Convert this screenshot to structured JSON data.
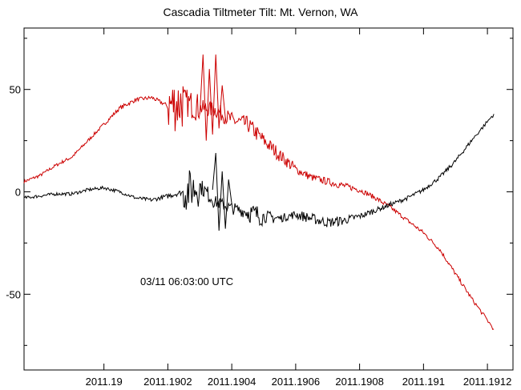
{
  "chart_data": {
    "type": "line",
    "title": "Cascadia Tiltmeter Tilt: Mt. Vernon, WA",
    "xlabel": "",
    "ylabel": "",
    "annotation": "03/11 06:03:00 UTC",
    "xlim": [
      2011.18975,
      2011.19128
    ],
    "ylim": [
      -87,
      80
    ],
    "x_ticks": [
      {
        "value": 2011.19,
        "label": "2011.19"
      },
      {
        "value": 2011.1902,
        "label": "2011.1902"
      },
      {
        "value": 2011.1904,
        "label": "2011.1904"
      },
      {
        "value": 2011.1906,
        "label": "2011.1906"
      },
      {
        "value": 2011.1908,
        "label": "2011.1908"
      },
      {
        "value": 2011.191,
        "label": "2011.191"
      },
      {
        "value": 2011.1912,
        "label": "2011.1912"
      }
    ],
    "y_ticks": [
      {
        "value": 50,
        "label": "50"
      },
      {
        "value": 0,
        "label": "0"
      },
      {
        "value": -50,
        "label": "-50"
      }
    ],
    "grid": false,
    "series": [
      {
        "color": "#cc0000",
        "noise": [
          0.8,
          0.8,
          0.8,
          0.8,
          0.8,
          0.9,
          1.0,
          1.0,
          1.0,
          14,
          7,
          4,
          4,
          4,
          4,
          3.5,
          3,
          2,
          1.8,
          1.8,
          1.5,
          1.2,
          1.2,
          1.0,
          1.0,
          1.0,
          1.0,
          1.0,
          1.0
        ],
        "points": [
          [
            2011.18975,
            5
          ],
          [
            2011.1898,
            8
          ],
          [
            2011.18985,
            13
          ],
          [
            2011.1899,
            17
          ],
          [
            2011.18995,
            25
          ],
          [
            2011.19,
            33
          ],
          [
            2011.19005,
            41
          ],
          [
            2011.1901,
            45
          ],
          [
            2011.19015,
            46
          ],
          [
            2011.1902,
            42
          ],
          [
            2011.19025,
            44
          ],
          [
            2011.1903,
            41
          ],
          [
            2011.19035,
            40
          ],
          [
            2011.1904,
            35
          ],
          [
            2011.19045,
            33
          ],
          [
            2011.1905,
            25
          ],
          [
            2011.19055,
            18
          ],
          [
            2011.1906,
            11
          ],
          [
            2011.19065,
            7
          ],
          [
            2011.1907,
            5
          ],
          [
            2011.19075,
            3
          ],
          [
            2011.1908,
            1
          ],
          [
            2011.19085,
            -3
          ],
          [
            2011.1909,
            -8
          ],
          [
            2011.19095,
            -14
          ],
          [
            2011.191,
            -20
          ],
          [
            2011.19105,
            -28
          ],
          [
            2011.1911,
            -40
          ],
          [
            2011.19115,
            -52
          ],
          [
            2011.19122,
            -67
          ]
        ]
      },
      {
        "color": "#000000",
        "noise": [
          0.8,
          0.8,
          0.8,
          0.8,
          0.8,
          0.8,
          0.8,
          0.9,
          1.0,
          1.3,
          10,
          4,
          3,
          3,
          5,
          3,
          2,
          2.5,
          2.5,
          2.5,
          2,
          1.5,
          1.2,
          1.0,
          1.0,
          1.0,
          1.0,
          1.0,
          1.0
        ],
        "points": [
          [
            2011.18975,
            -3
          ],
          [
            2011.1898,
            -2
          ],
          [
            2011.18985,
            -1
          ],
          [
            2011.1899,
            -1
          ],
          [
            2011.18995,
            1
          ],
          [
            2011.19,
            2
          ],
          [
            2011.19005,
            0
          ],
          [
            2011.1901,
            -3
          ],
          [
            2011.19015,
            -4
          ],
          [
            2011.1902,
            -2
          ],
          [
            2011.19025,
            0
          ],
          [
            2011.1903,
            3
          ],
          [
            2011.19035,
            -5
          ],
          [
            2011.1904,
            -8
          ],
          [
            2011.19045,
            -10
          ],
          [
            2011.1905,
            -12
          ],
          [
            2011.19055,
            -13
          ],
          [
            2011.1906,
            -11
          ],
          [
            2011.19065,
            -13
          ],
          [
            2011.1907,
            -15
          ],
          [
            2011.19075,
            -14
          ],
          [
            2011.1908,
            -12
          ],
          [
            2011.19085,
            -9
          ],
          [
            2011.1909,
            -6
          ],
          [
            2011.19095,
            -3
          ],
          [
            2011.191,
            1
          ],
          [
            2011.19105,
            7
          ],
          [
            2011.1911,
            15
          ],
          [
            2011.19115,
            25
          ],
          [
            2011.19122,
            38
          ]
        ]
      }
    ],
    "spikes": [
      {
        "color": "#cc0000",
        "points": [
          [
            2011.1903,
            38
          ],
          [
            2011.19031,
            67
          ],
          [
            2011.19032,
            25
          ],
          [
            2011.19033,
            60
          ],
          [
            2011.19034,
            28
          ],
          [
            2011.19035,
            67
          ],
          [
            2011.19036,
            31
          ],
          [
            2011.19037,
            52
          ],
          [
            2011.19038,
            36
          ]
        ]
      },
      {
        "color": "#000000",
        "points": [
          [
            2011.19034,
            1
          ],
          [
            2011.19035,
            19
          ],
          [
            2011.19036,
            -19
          ],
          [
            2011.19037,
            10
          ],
          [
            2011.19038,
            -18
          ],
          [
            2011.19039,
            6
          ],
          [
            2011.1904,
            -6
          ]
        ]
      }
    ]
  }
}
